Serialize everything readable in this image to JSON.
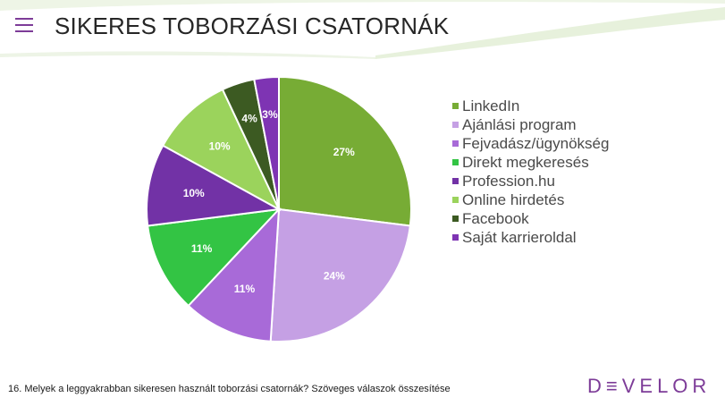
{
  "header": {
    "title": "SIKERES TOBORZÁSI CSATORNÁK"
  },
  "footer": {
    "note": "16. Melyek a leggyakrabban sikeresen használt toborzási csatornák? Szöveges válaszok összesítése",
    "logo": "D≡VELOR"
  },
  "chart_data": {
    "type": "pie",
    "title": "",
    "slices": [
      {
        "label": "LinkedIn",
        "value": 27,
        "display": "27%",
        "color": "#77ac35"
      },
      {
        "label": "Ajánlási program",
        "value": 24,
        "display": "24%",
        "color": "#c5a0e4"
      },
      {
        "label": "Fejvadász/ügynökség",
        "value": 11,
        "display": "11%",
        "color": "#a86ad8"
      },
      {
        "label": "Direkt megkeresés",
        "value": 11,
        "display": "11%",
        "color": "#33c444"
      },
      {
        "label": "Profession.hu",
        "value": 10,
        "display": "10%",
        "color": "#7232a6"
      },
      {
        "label": "Online hirdetés",
        "value": 10,
        "display": "10%",
        "color": "#9bd35c"
      },
      {
        "label": "Facebook",
        "value": 4,
        "display": "4%",
        "color": "#3c5a22"
      },
      {
        "label": "Saját karrieroldal",
        "value": 3,
        "display": "3%",
        "color": "#7e34b3"
      }
    ],
    "legend_position": "right"
  }
}
